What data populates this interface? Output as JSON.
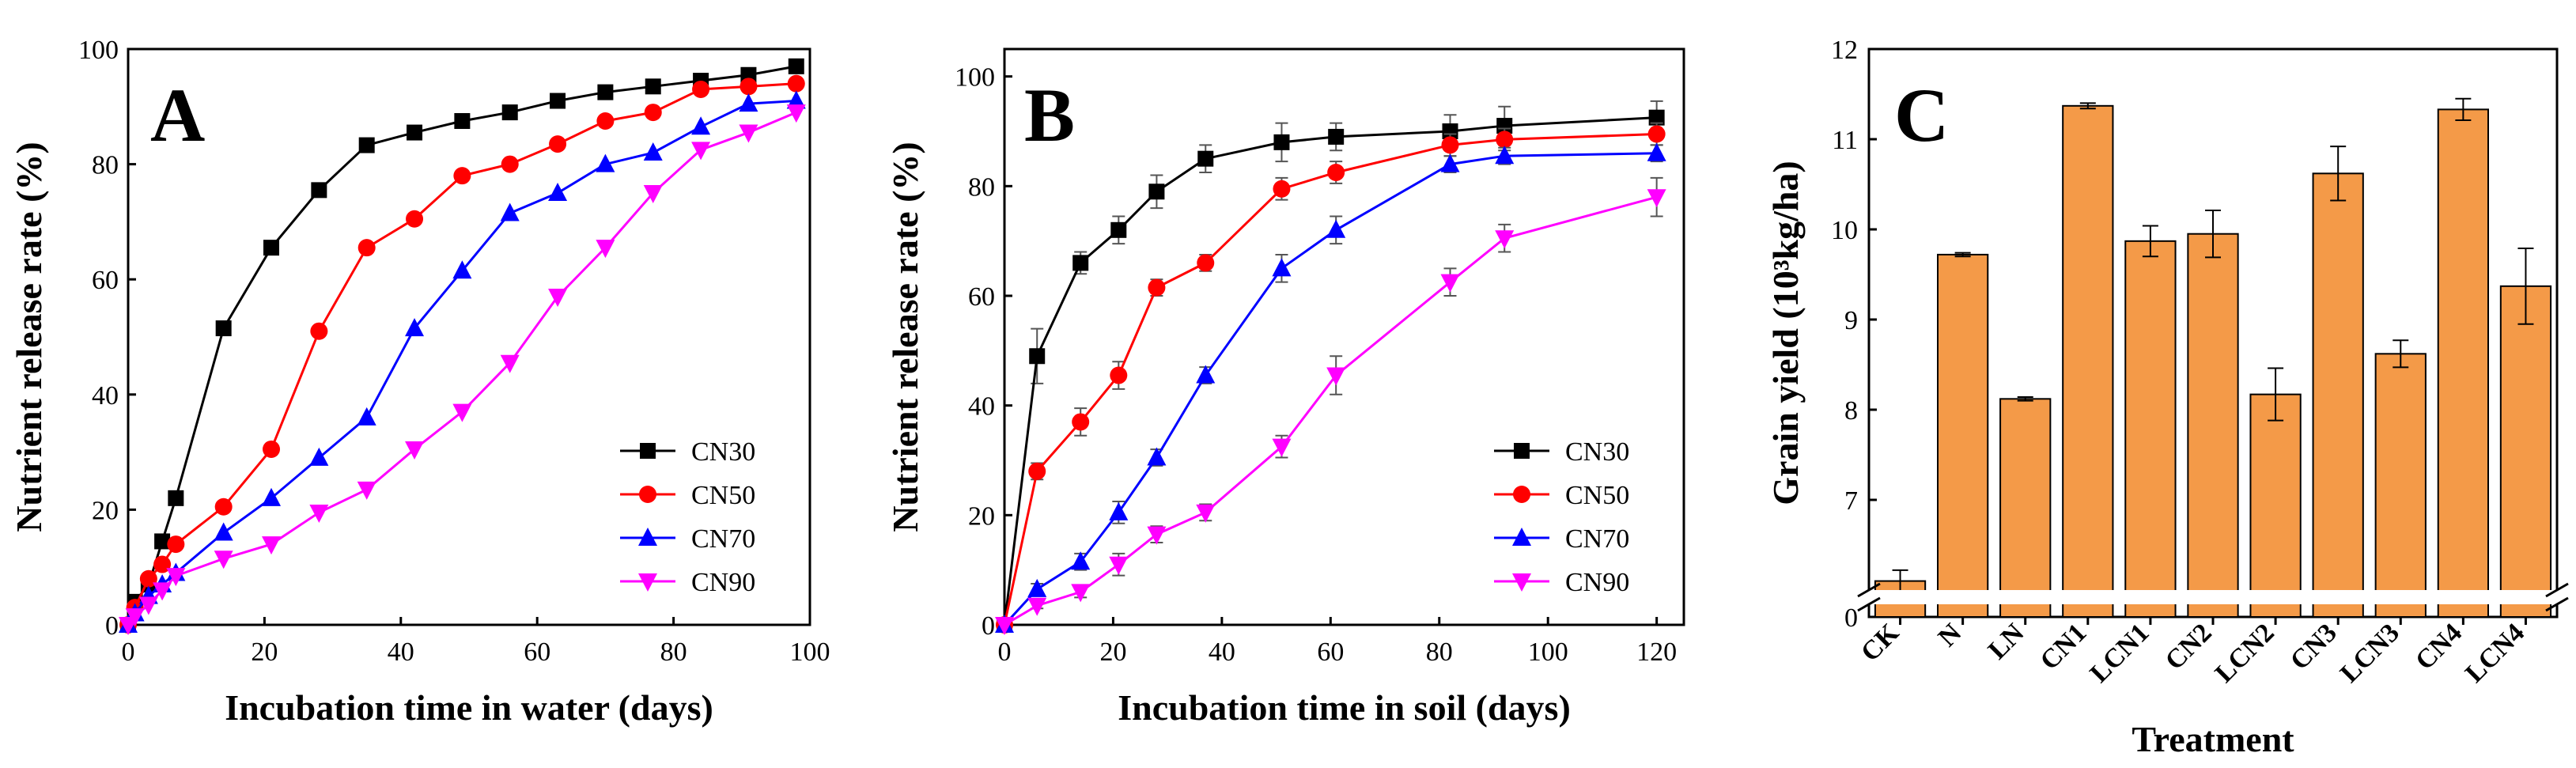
{
  "figure": {
    "panels": [
      "A",
      "B",
      "C"
    ]
  },
  "chart_data": [
    {
      "panel": "A",
      "type": "line",
      "xlabel": "Incubation time in water (days)",
      "ylabel": "Nutrient release rate (%)",
      "xlim": [
        0,
        100
      ],
      "ylim": [
        0,
        100
      ],
      "xticks": [
        0,
        20,
        40,
        60,
        80,
        100
      ],
      "yticks": [
        0,
        20,
        40,
        60,
        80,
        100
      ],
      "legend_position": "bottom-right",
      "series": [
        {
          "name": "CN30",
          "color": "#000000",
          "marker": "square",
          "x": [
            0,
            1,
            3,
            5,
            7,
            14,
            21,
            28,
            35,
            42,
            49,
            56,
            63,
            70,
            77,
            84,
            91,
            98
          ],
          "y": [
            0,
            4,
            7,
            14.5,
            22,
            51.5,
            65.5,
            75.5,
            83.3,
            85.5,
            87.5,
            89,
            91,
            92.5,
            93.5,
            94.5,
            95.5,
            97
          ]
        },
        {
          "name": "CN50",
          "color": "#ff0000",
          "marker": "circle",
          "x": [
            0,
            1,
            3,
            5,
            7,
            14,
            21,
            28,
            35,
            42,
            49,
            56,
            63,
            70,
            77,
            84,
            91,
            98
          ],
          "y": [
            0,
            3,
            8,
            10.5,
            14,
            20.5,
            30.5,
            51,
            65.5,
            70.5,
            78,
            80,
            83.5,
            87.5,
            89,
            93,
            93.5,
            94
          ]
        },
        {
          "name": "CN70",
          "color": "#0000ff",
          "marker": "triangle-up",
          "x": [
            0,
            1,
            3,
            5,
            7,
            14,
            21,
            28,
            35,
            42,
            49,
            56,
            63,
            70,
            77,
            84,
            91,
            98
          ],
          "y": [
            0,
            2,
            5,
            7,
            9,
            16,
            22,
            29,
            36,
            51.5,
            61.5,
            71.5,
            75,
            80,
            82,
            86.5,
            90.5,
            91
          ]
        },
        {
          "name": "CN90",
          "color": "#ff00ff",
          "marker": "triangle-down",
          "x": [
            0,
            1,
            3,
            5,
            7,
            14,
            21,
            28,
            35,
            42,
            49,
            56,
            63,
            70,
            77,
            84,
            91,
            98
          ],
          "y": [
            0,
            1.5,
            3.5,
            6,
            8.5,
            11.5,
            14,
            19.5,
            23.5,
            30.5,
            37,
            45.5,
            57,
            65.5,
            75,
            82.5,
            85.5,
            89
          ]
        }
      ]
    },
    {
      "panel": "B",
      "type": "line",
      "xlabel": "Incubation time in soil (days)",
      "ylabel": "Nutrient release rate (%)",
      "xlim": [
        0,
        125
      ],
      "ylim": [
        0,
        105
      ],
      "xticks": [
        0,
        20,
        40,
        60,
        80,
        100,
        120
      ],
      "yticks": [
        0,
        20,
        40,
        60,
        80,
        100
      ],
      "legend_position": "bottom-right",
      "series": [
        {
          "name": "CN30",
          "color": "#000000",
          "marker": "square",
          "x": [
            0,
            6,
            14,
            21,
            28,
            37,
            51,
            61,
            82,
            92,
            120
          ],
          "y": [
            0,
            49,
            66,
            72,
            79,
            85,
            88,
            89,
            90,
            91,
            92.5
          ],
          "err": [
            0,
            5,
            2,
            2.5,
            3,
            2.5,
            3.5,
            2.5,
            3,
            3.5,
            3
          ]
        },
        {
          "name": "CN50",
          "color": "#ff0000",
          "marker": "circle",
          "x": [
            0,
            6,
            14,
            21,
            28,
            37,
            51,
            61,
            82,
            92,
            120
          ],
          "y": [
            0,
            28,
            37,
            45.5,
            61.5,
            66,
            79.5,
            82.5,
            87.5,
            88.5,
            89.5
          ],
          "err": [
            0,
            1.5,
            2.5,
            2.5,
            1.5,
            1.5,
            2,
            2,
            2,
            2,
            2
          ]
        },
        {
          "name": "CN70",
          "color": "#0000ff",
          "marker": "triangle-up",
          "x": [
            0,
            6,
            14,
            21,
            28,
            37,
            51,
            61,
            82,
            92,
            120
          ],
          "y": [
            0,
            6.5,
            11.5,
            20.5,
            30.5,
            45.5,
            65,
            72,
            84,
            85.5,
            86
          ],
          "err": [
            0,
            1,
            1.5,
            2,
            1.5,
            1.5,
            2.5,
            2.5,
            1.5,
            1.5,
            1.5
          ]
        },
        {
          "name": "CN90",
          "color": "#ff00ff",
          "marker": "triangle-down",
          "x": [
            0,
            6,
            14,
            21,
            28,
            37,
            51,
            61,
            82,
            92,
            120
          ],
          "y": [
            0,
            3.5,
            6,
            11,
            16.5,
            20.5,
            32.5,
            45.5,
            62.5,
            70.5,
            78
          ],
          "err": [
            0,
            0.5,
            1,
            2,
            1.5,
            1.5,
            2,
            3.5,
            2.5,
            2.5,
            3.5
          ]
        }
      ]
    },
    {
      "panel": "C",
      "type": "bar",
      "xlabel": "Treatment",
      "ylabel": "Grain yield (10³kg/ha)",
      "ylim": [
        6,
        12
      ],
      "yticks": [
        "7",
        "8",
        "9",
        "10",
        "11",
        "12"
      ],
      "y_axis_break": "below 6.3",
      "y_bottom_tick": "0",
      "bar_color": "#f49a48",
      "categories": [
        "CK",
        "N",
        "LN",
        "CN1",
        "LCN1",
        "CN2",
        "LCN2",
        "CN3",
        "LCN3",
        "CN4",
        "LCN4"
      ],
      "values": [
        6.1,
        9.72,
        8.12,
        11.37,
        9.87,
        9.95,
        8.17,
        10.62,
        8.62,
        11.33,
        9.37
      ],
      "errors": [
        0.12,
        0.02,
        0.02,
        0.03,
        0.17,
        0.26,
        0.29,
        0.3,
        0.15,
        0.12,
        0.42
      ]
    }
  ]
}
